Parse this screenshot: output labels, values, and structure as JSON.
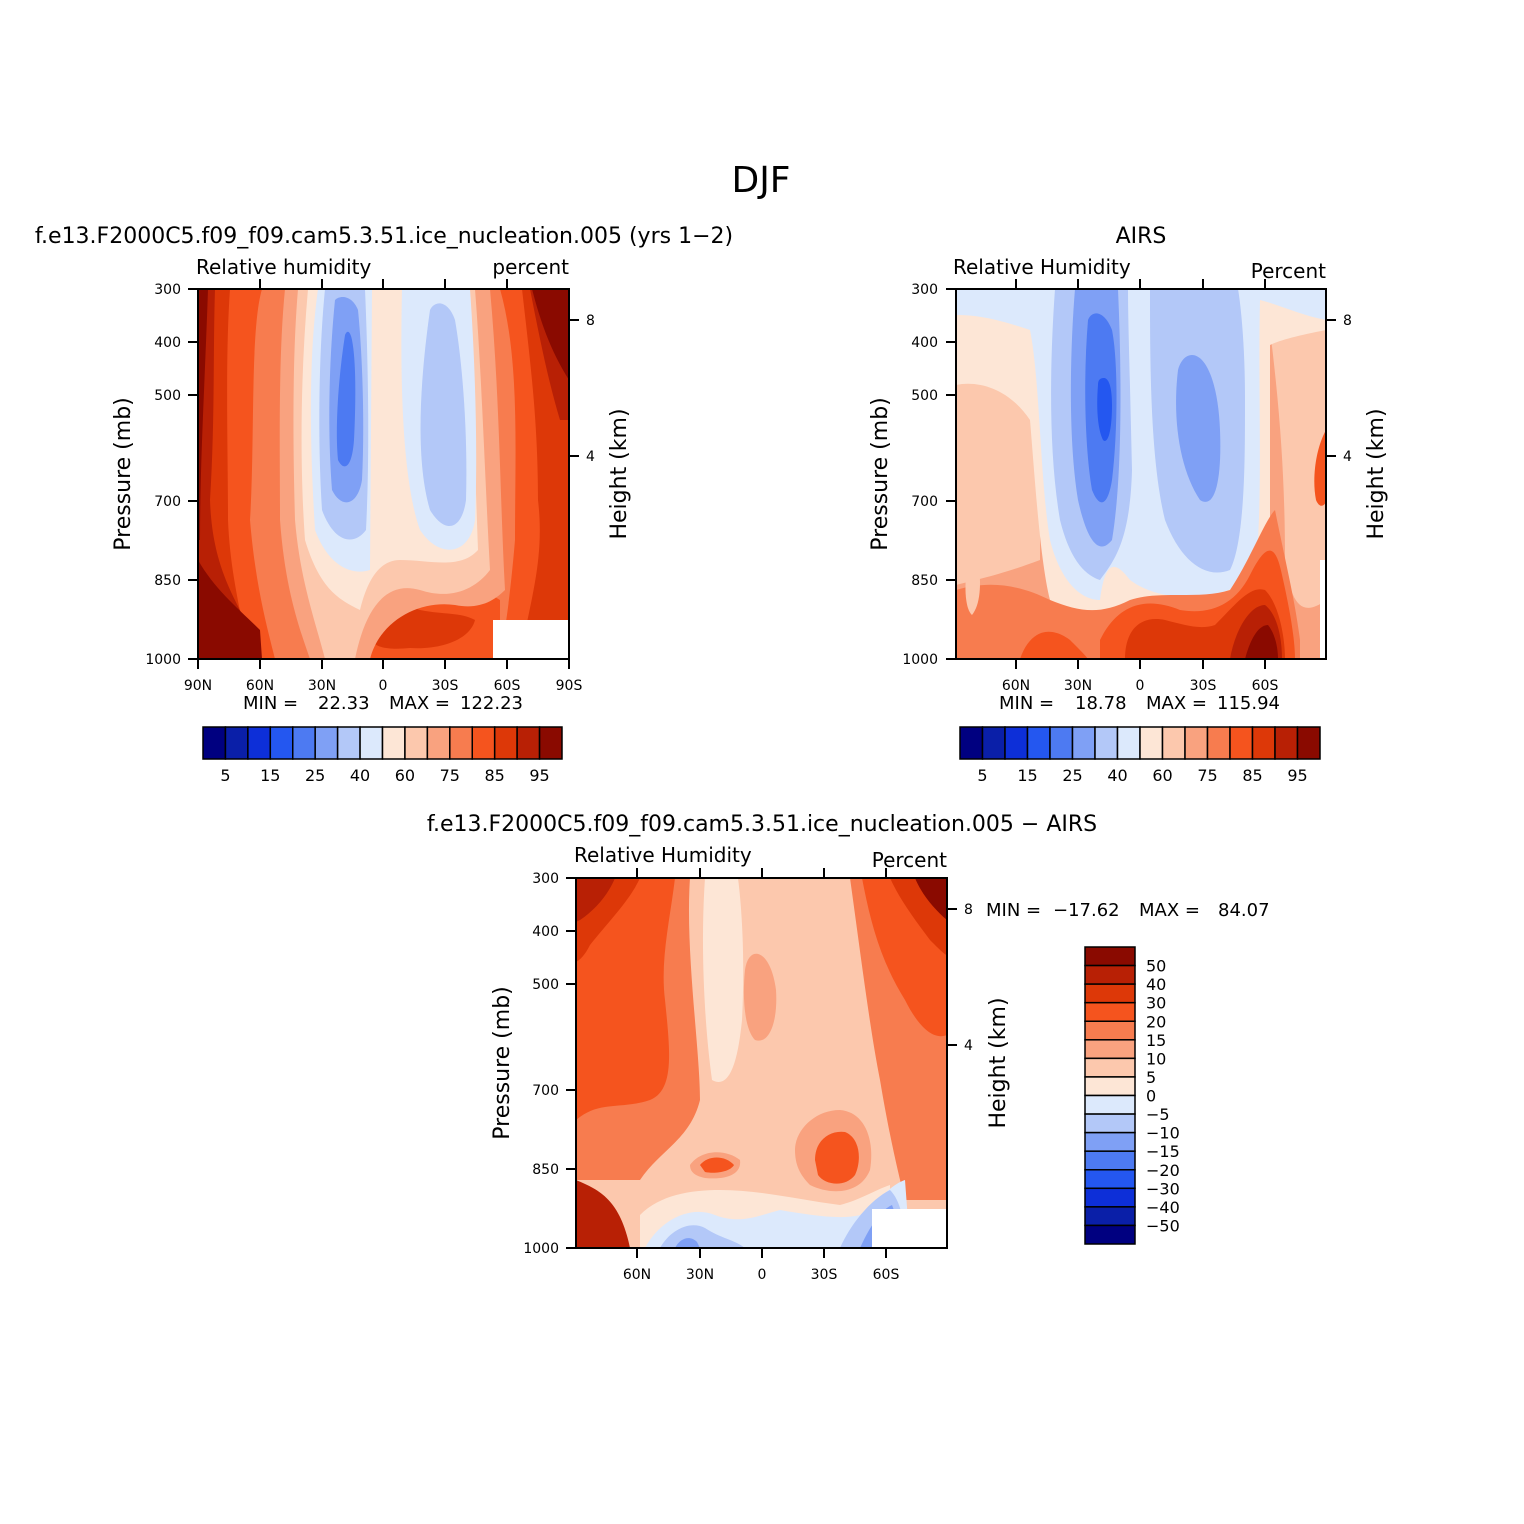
{
  "figure": {
    "title": "DJF"
  },
  "chart_data": [
    {
      "type": "heatmap",
      "title": "f.e13.F2000C5.f09_f09.cam5.3.51.ice_nucleation.005 (yrs 1−2)",
      "left_label": "Relative humidity",
      "right_label": "percent",
      "ylabel": "Pressure (mb)",
      "ylabel_right": "Height (km)",
      "xticks": [
        "90N",
        "60N",
        "30N",
        "0",
        "30S",
        "60S",
        "90S"
      ],
      "yticks": [
        "300",
        "400",
        "500",
        "700",
        "850",
        "1000"
      ],
      "right_ticks": [
        "8",
        "4"
      ],
      "stats": {
        "min_label": "MIN =",
        "min": "22.33",
        "max_label": "MAX =",
        "max": "122.23"
      },
      "levels": [
        5,
        10,
        15,
        20,
        25,
        30,
        40,
        50,
        60,
        65,
        75,
        80,
        85,
        90,
        95
      ],
      "colorbar_labels": [
        "5",
        "15",
        "25",
        "40",
        "60",
        "75",
        "85",
        "95"
      ],
      "colors": [
        "#000080",
        "#0a1fa8",
        "#0d2fd8",
        "#2457f0",
        "#4d7af2",
        "#7fa0f5",
        "#b3c8f8",
        "#dce9fc",
        "#fde6d6",
        "#fcc8ad",
        "#f9a27f",
        "#f77c4f",
        "#f5541e",
        "#dd3808",
        "#b82005",
        "#8a0a00"
      ]
    },
    {
      "type": "heatmap",
      "title": "AIRS",
      "left_label": "Relative Humidity",
      "right_label": "Percent",
      "ylabel": "Pressure (mb)",
      "ylabel_right": "Height (km)",
      "xticks": [
        "60N",
        "30N",
        "0",
        "30S",
        "60S"
      ],
      "yticks": [
        "300",
        "400",
        "500",
        "700",
        "850",
        "1000"
      ],
      "right_ticks": [
        "8",
        "4"
      ],
      "stats": {
        "min_label": "MIN =",
        "min": "18.78",
        "max_label": "MAX =",
        "max": "115.94"
      },
      "levels": [
        5,
        10,
        15,
        20,
        25,
        30,
        40,
        50,
        60,
        65,
        75,
        80,
        85,
        90,
        95
      ],
      "colorbar_labels": [
        "5",
        "15",
        "25",
        "40",
        "60",
        "75",
        "85",
        "95"
      ]
    },
    {
      "type": "heatmap",
      "title": "f.e13.F2000C5.f09_f09.cam5.3.51.ice_nucleation.005 − AIRS",
      "left_label": "Relative Humidity",
      "right_label": "Percent",
      "ylabel": "Pressure (mb)",
      "ylabel_right": "Height (km)",
      "xticks": [
        "60N",
        "30N",
        "0",
        "30S",
        "60S"
      ],
      "yticks": [
        "300",
        "400",
        "500",
        "700",
        "850",
        "1000"
      ],
      "right_ticks": [
        "8",
        "4"
      ],
      "stats": {
        "min_label": "MIN =",
        "min": "−17.62",
        "max_label": "MAX =",
        "max": "84.07"
      },
      "levels": [
        -50,
        -40,
        -30,
        -20,
        -15,
        -10,
        -5,
        0,
        5,
        10,
        15,
        20,
        30,
        40,
        50
      ],
      "colorbar_labels": [
        "50",
        "40",
        "30",
        "20",
        "15",
        "10",
        "5",
        "0",
        "−5",
        "−10",
        "−15",
        "−20",
        "−30",
        "−40",
        "−50"
      ]
    }
  ]
}
